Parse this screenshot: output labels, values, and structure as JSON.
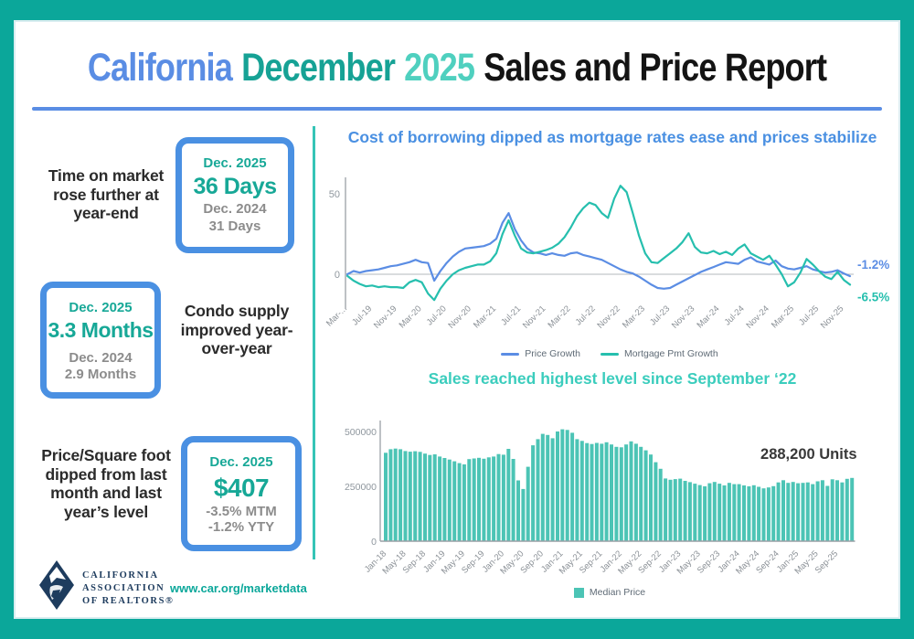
{
  "palette": {
    "frame_teal": "#0ba79a",
    "title_blue": "#5a8de4",
    "title_teal_dark": "#16a295",
    "title_teal_light": "#4fd0bf",
    "accent_blue": "#4a90e2",
    "stat_teal": "#17a897",
    "gray_text": "#8c8c8c",
    "navy": "#1e3c5e"
  },
  "header": {
    "part1": "California",
    "part2": "December",
    "part3": "2025",
    "part4": "Sales and Price Report"
  },
  "stats": [
    {
      "text": "Time on market rose further at year-end",
      "box": {
        "line1": "Dec. 2025",
        "line2": "36 Days",
        "line3": "Dec. 2024",
        "line4": "31 Days"
      }
    },
    {
      "text": "Condo supply improved year-over-year",
      "box": {
        "line1": "Dec. 2025",
        "line2": "3.3 Months",
        "line3": "Dec. 2024",
        "line4": "2.9 Months"
      }
    },
    {
      "text": "Price/Square foot dipped from last month and last year’s level",
      "box": {
        "line1": "Dec. 2025",
        "line2": "$407",
        "line3": "-3.5% MTM",
        "line4": "-1.2% YTY"
      }
    }
  ],
  "footer": {
    "org_line1": "CALIFORNIA",
    "org_line2": "ASSOCIATION",
    "org_line3": "OF REALTORS®",
    "website": "www.car.org/marketdata"
  },
  "chart_data": [
    {
      "type": "line",
      "title": "Cost of borrowing dipped as mortgage rates ease and prices stabilize",
      "x_range": "Mar-2019 to Dec-2025 (monthly)",
      "x_tick_labels": [
        "Mar-...",
        "Jul-19",
        "Nov-19",
        "Mar-20",
        "Jul-20",
        "Nov-20",
        "Mar-21",
        "Jul-21",
        "Nov-21",
        "Mar-22",
        "Jul-22",
        "Nov-22",
        "Mar-23",
        "Jul-23",
        "Nov-23",
        "Mar-24",
        "Jul-24",
        "Nov-24",
        "Mar-25",
        "Jul-25",
        "Nov-25"
      ],
      "y_ticks": [
        0,
        50
      ],
      "ylim": [
        -20,
        60
      ],
      "grid": false,
      "legend_position": "bottom",
      "series": [
        {
          "name": "Price Growth",
          "color": "#5b8de4",
          "end_label": "-1.2%",
          "values": [
            0,
            2,
            1,
            2,
            2.5,
            3,
            4,
            5,
            5.5,
            6.5,
            7.5,
            9,
            7.5,
            7,
            -4,
            2,
            7,
            11,
            14,
            16,
            16.5,
            17,
            17.5,
            19,
            22,
            32,
            38,
            28,
            21,
            16,
            13.5,
            13,
            12,
            13,
            12,
            11.5,
            13,
            13.5,
            12,
            11,
            10,
            9,
            7,
            5,
            3,
            1.5,
            0.5,
            -1.5,
            -4,
            -6.5,
            -8.5,
            -9,
            -8.5,
            -6.5,
            -4.5,
            -2.5,
            -0.5,
            1.5,
            3,
            4.5,
            6,
            7.5,
            7,
            6.5,
            9,
            10.5,
            8,
            7,
            6,
            8.5,
            5,
            3.5,
            3,
            4,
            5,
            3,
            2,
            1,
            1.5,
            2.5,
            0.5,
            -1.2
          ]
        },
        {
          "name": "Mortgage Pmt Growth",
          "color": "#26bfae",
          "end_label": "-6.5%",
          "values": [
            -1,
            -4,
            -6,
            -7.5,
            -7,
            -8,
            -7.5,
            -8,
            -8,
            -8.5,
            -5,
            -3.5,
            -5,
            -12,
            -16,
            -9,
            -4,
            0,
            2.5,
            4,
            5,
            6,
            6,
            8,
            13,
            25,
            33.5,
            24,
            16,
            13.5,
            13,
            14,
            15,
            16.5,
            19,
            23,
            29,
            36,
            41,
            44.5,
            43,
            38,
            35,
            47,
            55,
            51,
            38,
            24,
            13,
            7.5,
            7,
            10,
            13,
            16,
            20,
            25.5,
            17,
            13.5,
            13,
            14.5,
            12.5,
            14,
            12,
            16,
            18.5,
            13,
            11,
            9,
            11.5,
            6,
            0,
            -7.5,
            -5,
            1,
            9.5,
            6,
            2,
            -1.5,
            -3,
            1.5,
            -3.5,
            -6.5
          ]
        }
      ]
    },
    {
      "type": "bar",
      "title": "Sales reached highest level since September ‘22",
      "x_range": "Jan-2018 to Dec-2025 (monthly)",
      "x_tick_labels": [
        "Jan-18",
        "May-18",
        "Sep-18",
        "Jan-19",
        "May-19",
        "Sep-19",
        "Jan-20",
        "May-20",
        "Sep-20",
        "Jan-21",
        "May-21",
        "Sep-21",
        "Jan-22",
        "May-22",
        "Sep-22",
        "Jan-23",
        "May-23",
        "Sep-23",
        "Jan-24",
        "May-24",
        "Sep-24",
        "Jan-25",
        "May-25",
        "Sep-25"
      ],
      "y_ticks": [
        0,
        250000,
        500000
      ],
      "ylim": [
        0,
        500000
      ],
      "annotation": "288,200 Units",
      "legend_position": "bottom",
      "series": [
        {
          "name": "Median Price",
          "color": "#4cc4b5",
          "values": [
            403000,
            419000,
            422000,
            419000,
            411000,
            408000,
            410000,
            407000,
            399000,
            393000,
            396000,
            386000,
            379000,
            372000,
            364000,
            356000,
            350000,
            374000,
            377000,
            380000,
            376000,
            382000,
            386000,
            397000,
            394000,
            421000,
            375000,
            277000,
            238000,
            339000,
            437000,
            465000,
            489000,
            484000,
            469000,
            500000,
            510000,
            507000,
            494000,
            465000,
            457000,
            447000,
            443000,
            448000,
            444000,
            451000,
            441000,
            430000,
            428000,
            441000,
            455000,
            444000,
            430000,
            414000,
            395000,
            360000,
            330000,
            286000,
            280000,
            283000,
            285000,
            275000,
            269000,
            262000,
            256000,
            250000,
            264000,
            270000,
            262000,
            254000,
            266000,
            260000,
            260000,
            254000,
            250000,
            255000,
            248000,
            241000,
            245000,
            251000,
            268000,
            278000,
            266000,
            270000,
            264000,
            266000,
            268000,
            260000,
            273000,
            278000,
            252000,
            282000,
            278000,
            268000,
            284000,
            288200
          ]
        }
      ]
    }
  ]
}
